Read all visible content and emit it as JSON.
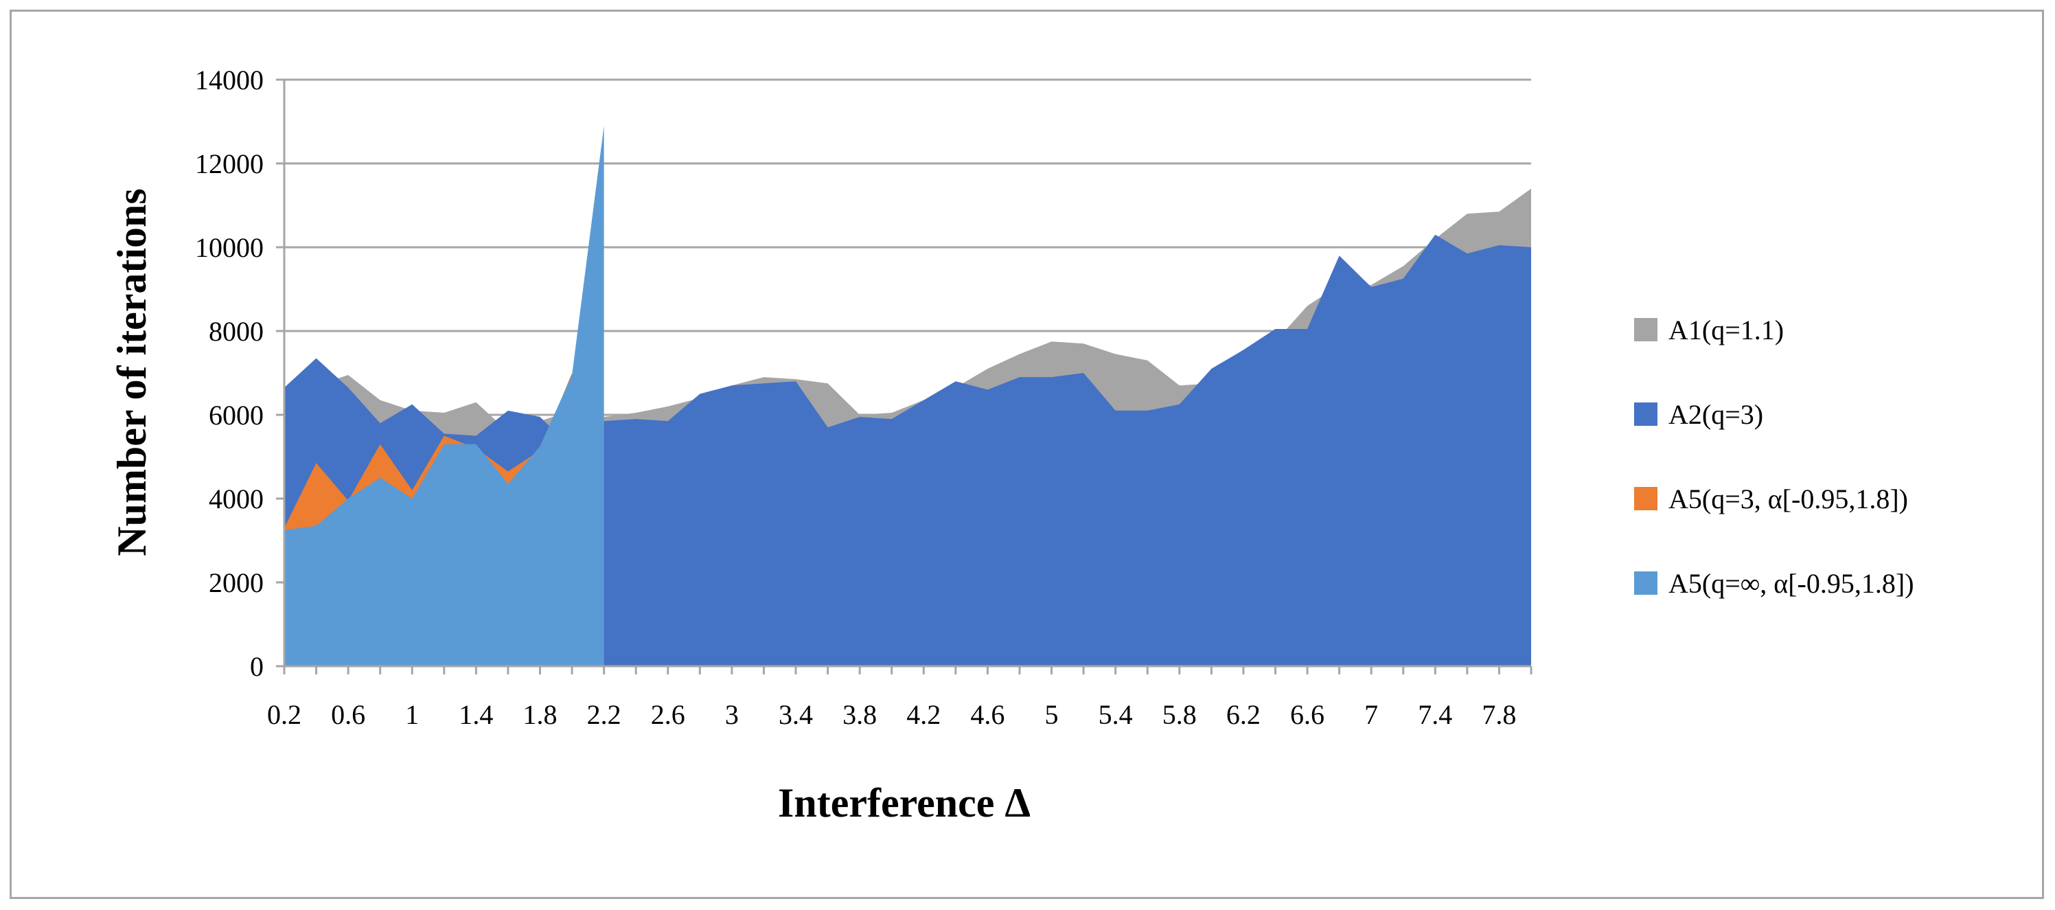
{
  "chart_data": {
    "type": "area",
    "title": "",
    "xlabel": "Interference Δ",
    "ylabel": "Number of iterations",
    "ylim": [
      0,
      14000
    ],
    "yticks": [
      0,
      2000,
      4000,
      6000,
      8000,
      10000,
      12000,
      14000
    ],
    "grid": true,
    "legend_position": "right",
    "x": [
      0.2,
      0.4,
      0.6,
      0.8,
      1.0,
      1.2,
      1.4,
      1.6,
      1.8,
      2.0,
      2.2,
      2.4,
      2.6,
      2.8,
      3.0,
      3.2,
      3.4,
      3.6,
      3.8,
      4.0,
      4.2,
      4.4,
      4.6,
      4.8,
      5.0,
      5.2,
      5.4,
      5.6,
      5.8,
      6.0,
      6.2,
      6.4,
      6.6,
      6.8,
      7.0,
      7.2,
      7.4,
      7.6,
      7.8,
      8.0
    ],
    "x_tick_labels": [
      "0.2",
      "0.6",
      "1",
      "1.4",
      "1.8",
      "2.2",
      "2.6",
      "3",
      "3.4",
      "3.8",
      "4.2",
      "4.6",
      "5",
      "5.4",
      "5.8",
      "6.2",
      "6.6",
      "7",
      "7.4",
      "7.8"
    ],
    "series": [
      {
        "name": "A1(q=1.1)",
        "color": "#a5a5a5",
        "values": [
          6600,
          6700,
          6950,
          6350,
          6100,
          6050,
          6300,
          5600,
          5850,
          6100,
          5950,
          6050,
          6200,
          6400,
          6700,
          6900,
          6850,
          6750,
          6000,
          6050,
          6350,
          6650,
          7100,
          7450,
          7750,
          7700,
          7450,
          7300,
          6700,
          6750,
          7500,
          7750,
          8600,
          9100,
          9100,
          9550,
          10200,
          10800,
          10850,
          11400
        ]
      },
      {
        "name": "A2(q=3)",
        "color": "#4472c4",
        "values": [
          6650,
          7350,
          6650,
          5800,
          6250,
          5550,
          5500,
          6100,
          5950,
          5200,
          5850,
          5900,
          5850,
          6500,
          6700,
          6750,
          6800,
          5700,
          5950,
          5900,
          6350,
          6800,
          6600,
          6900,
          6900,
          7000,
          6100,
          6100,
          6250,
          7100,
          7550,
          8050,
          8050,
          9800,
          9050,
          9250,
          10300,
          9850,
          10050,
          10000
        ]
      },
      {
        "name": "A5(q=3, α[-0.95,1.8])",
        "color": "#ed7d31",
        "values": [
          3300,
          4850,
          3950,
          5300,
          4200,
          5500,
          5200,
          4650,
          5150,
          7000,
          null,
          null,
          null,
          null,
          null,
          null,
          null,
          null,
          null,
          null,
          null,
          null,
          null,
          null,
          null,
          null,
          null,
          null,
          null,
          null,
          null,
          null,
          null,
          null,
          null,
          null,
          null,
          null,
          null,
          null
        ]
      },
      {
        "name": "A5(q=∞, α[-0.95,1.8])",
        "color": "#5b9bd5",
        "values": [
          3250,
          3350,
          4000,
          4500,
          4000,
          5300,
          5300,
          4350,
          5250,
          6950,
          12900,
          null,
          null,
          null,
          null,
          null,
          null,
          null,
          null,
          null,
          null,
          null,
          null,
          null,
          null,
          null,
          null,
          null,
          null,
          null,
          null,
          null,
          null,
          null,
          null,
          null,
          null,
          null,
          null,
          null
        ]
      }
    ]
  }
}
